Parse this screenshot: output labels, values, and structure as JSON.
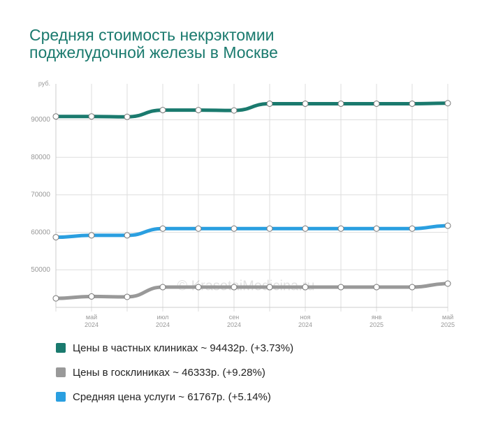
{
  "chart_data": {
    "type": "line",
    "title": "Средняя стоимость некрэктомии поджелудочной железы в Москве",
    "y_label": "руб.",
    "watermark": "© KrasotaiMedicina.ru",
    "categories": [
      null,
      "май 2024",
      null,
      "июл 2024",
      null,
      "сен 2024",
      null,
      "ноя 2024",
      null,
      "янв 2025",
      null,
      "май 2025"
    ],
    "series": [
      {
        "name": "Цены в частных клиниках ~ 94432р. (+3.73%)",
        "color": "#1a7a6e",
        "values": [
          90900,
          90900,
          90800,
          92600,
          92600,
          92500,
          94300,
          94300,
          94300,
          94300,
          94300,
          94432
        ]
      },
      {
        "name": "Цены в госклиниках ~ 46333р. (+9.28%)",
        "color": "#999999",
        "values": [
          42400,
          42900,
          42800,
          45400,
          45400,
          45400,
          45400,
          45400,
          45400,
          45400,
          45400,
          46333
        ]
      },
      {
        "name": "Средняя цена услуги ~ 61767р. (+5.14%)",
        "color": "#2a9fe0",
        "values": [
          58700,
          59200,
          59200,
          61000,
          61000,
          61000,
          61000,
          61000,
          61000,
          61000,
          61000,
          61767
        ]
      }
    ],
    "ylim": [
      40000,
      99600
    ],
    "yticks": [
      50000,
      60000,
      70000,
      80000,
      90000
    ],
    "grid": true
  }
}
